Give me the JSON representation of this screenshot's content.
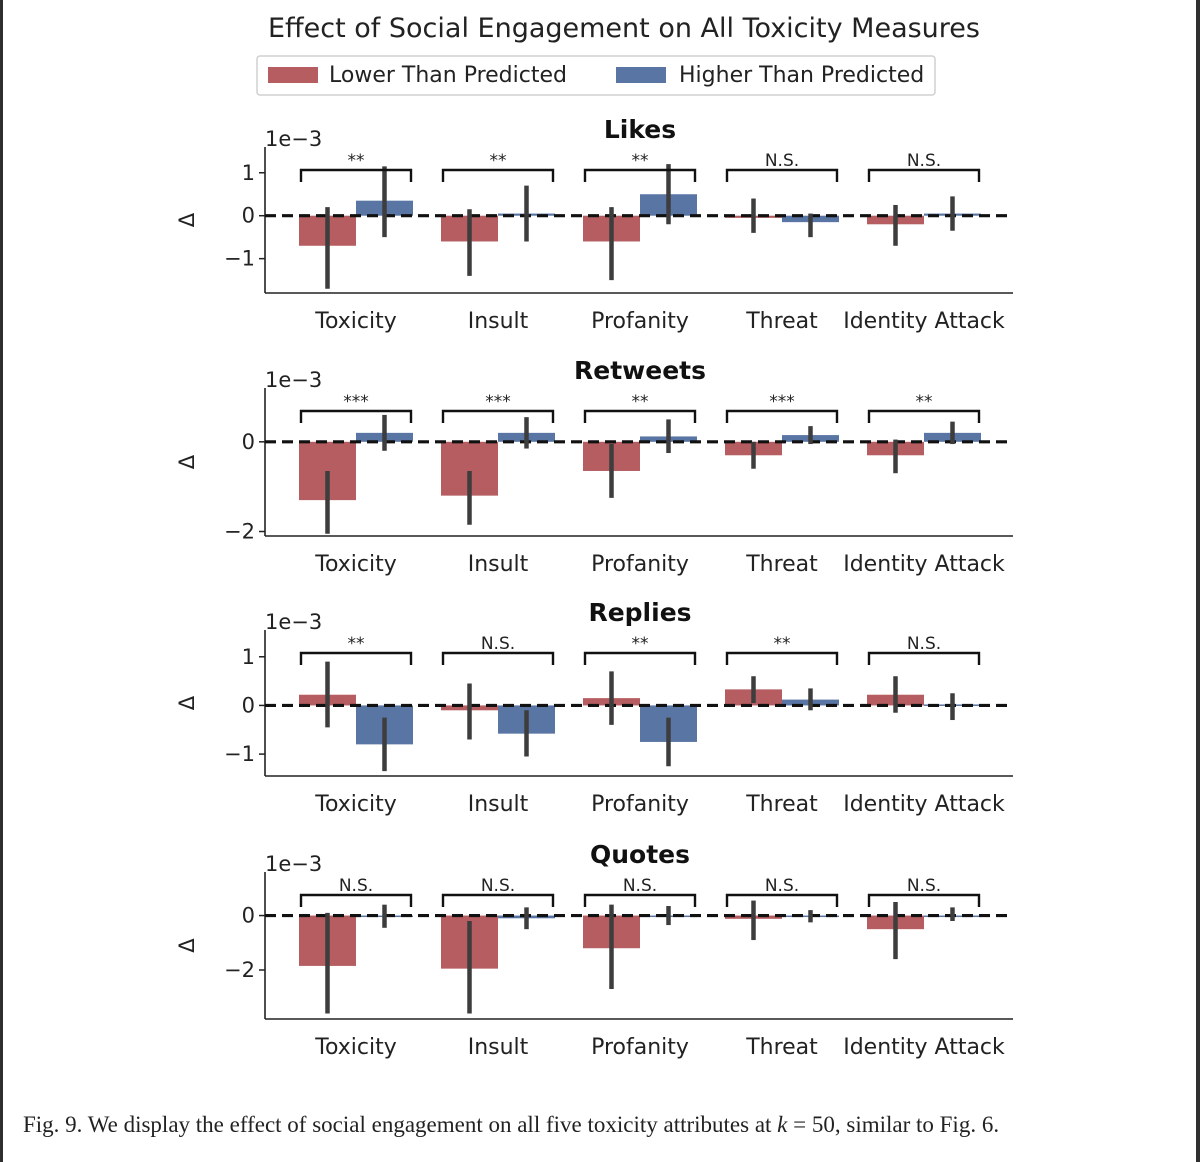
{
  "chart_data": {
    "type": "bar",
    "title": "Effect of Social Engagement on All Toxicity Measures",
    "legend": {
      "placement": "top-center",
      "entries": [
        {
          "name": "Lower Than Predicted",
          "color": "#b55d60"
        },
        {
          "name": "Higher Than Predicted",
          "color": "#5975a4"
        }
      ]
    },
    "categories": [
      "Toxicity",
      "Insult",
      "Profanity",
      "Threat",
      "Identity Attack"
    ],
    "ylabel": "Δ",
    "y_scale_label": "1e−3",
    "panels": [
      {
        "title": "Likes",
        "ylim": [
          -1.8,
          1.6
        ],
        "yticks": [
          -1,
          0,
          1
        ],
        "ytick_labels": [
          "−1",
          "0",
          "1"
        ],
        "series": [
          {
            "name": "Lower Than Predicted",
            "values": [
              -0.7,
              -0.6,
              -0.6,
              -0.05,
              -0.2
            ],
            "err_low": [
              -1.7,
              -1.4,
              -1.5,
              -0.4,
              -0.7
            ],
            "err_high": [
              0.2,
              0.15,
              0.2,
              0.4,
              0.25
            ]
          },
          {
            "name": "Higher Than Predicted",
            "values": [
              0.35,
              0.05,
              0.5,
              -0.15,
              0.05
            ],
            "err_low": [
              -0.5,
              -0.6,
              -0.2,
              -0.5,
              -0.35
            ],
            "err_high": [
              1.15,
              0.7,
              1.2,
              0.05,
              0.45
            ]
          }
        ],
        "significance": [
          "**",
          "**",
          "**",
          "N.S.",
          "N.S."
        ]
      },
      {
        "title": "Retweets",
        "ylim": [
          -2.1,
          1.2
        ],
        "yticks": [
          -2,
          0
        ],
        "ytick_labels": [
          "−2",
          "0"
        ],
        "series": [
          {
            "name": "Lower Than Predicted",
            "values": [
              -1.3,
              -1.2,
              -0.65,
              -0.3,
              -0.3
            ],
            "err_low": [
              -2.05,
              -1.85,
              -1.25,
              -0.6,
              -0.7
            ],
            "err_high": [
              -0.65,
              -0.65,
              -0.05,
              0.0,
              0.05
            ]
          },
          {
            "name": "Higher Than Predicted",
            "values": [
              0.2,
              0.2,
              0.12,
              0.15,
              0.2
            ],
            "err_low": [
              -0.2,
              -0.15,
              -0.25,
              -0.05,
              -0.05
            ],
            "err_high": [
              0.6,
              0.55,
              0.5,
              0.35,
              0.45
            ]
          }
        ],
        "significance": [
          "***",
          "***",
          "**",
          "***",
          "**"
        ]
      },
      {
        "title": "Replies",
        "ylim": [
          -1.45,
          1.55
        ],
        "yticks": [
          -1,
          0,
          1
        ],
        "ytick_labels": [
          "−1",
          "0",
          "1"
        ],
        "series": [
          {
            "name": "Lower Than Predicted",
            "values": [
              0.22,
              -0.1,
              0.15,
              0.33,
              0.22
            ],
            "err_low": [
              -0.45,
              -0.7,
              -0.4,
              0.05,
              -0.15
            ],
            "err_high": [
              0.9,
              0.45,
              0.7,
              0.6,
              0.6
            ]
          },
          {
            "name": "Higher Than Predicted",
            "values": [
              -0.8,
              -0.58,
              -0.75,
              0.12,
              0.02
            ],
            "err_low": [
              -1.35,
              -1.05,
              -1.25,
              -0.1,
              -0.3
            ],
            "err_high": [
              -0.25,
              -0.1,
              -0.25,
              0.35,
              0.25
            ]
          }
        ],
        "significance": [
          "**",
          "N.S.",
          "**",
          "**",
          "N.S."
        ]
      },
      {
        "title": "Quotes",
        "ylim": [
          -3.8,
          1.6
        ],
        "yticks": [
          -2,
          0
        ],
        "ytick_labels": [
          "−2",
          "0"
        ],
        "series": [
          {
            "name": "Lower Than Predicted",
            "values": [
              -1.85,
              -1.95,
              -1.2,
              -0.12,
              -0.5
            ],
            "err_low": [
              -3.6,
              -3.6,
              -2.7,
              -0.9,
              -1.6
            ],
            "err_high": [
              0.1,
              -0.2,
              0.4,
              0.55,
              0.5
            ]
          },
          {
            "name": "Higher Than Predicted",
            "values": [
              0.0,
              -0.1,
              -0.05,
              -0.02,
              -0.02
            ],
            "err_low": [
              -0.45,
              -0.5,
              -0.35,
              -0.25,
              -0.2
            ],
            "err_high": [
              0.4,
              0.3,
              0.35,
              0.2,
              0.3
            ]
          }
        ],
        "significance": [
          "N.S.",
          "N.S.",
          "N.S.",
          "N.S.",
          "N.S."
        ]
      }
    ]
  },
  "caption": {
    "prefix": "Fig. 9.  We display the effect of social engagement on all five toxicity attributes at ",
    "k_var": "k",
    "suffix": " = 50, similar to Fig. 6."
  }
}
